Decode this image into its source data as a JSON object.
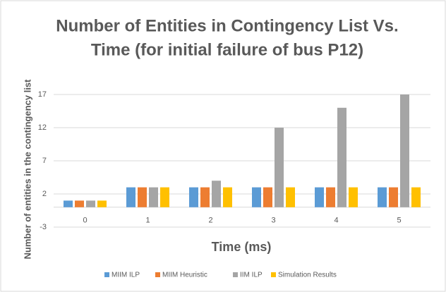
{
  "chart_data": {
    "type": "bar",
    "title": [
      "Number of Entities in Contingency List Vs.",
      "Time (for initial failure of bus P12)"
    ],
    "x_label": "Time (ms)",
    "y_label": "Number of entities in the contingency list",
    "categories": [
      "0",
      "1",
      "2",
      "3",
      "4",
      "5"
    ],
    "series": [
      {
        "name": "MIIM ILP",
        "color": "#5b9bd5",
        "values": [
          1,
          3,
          3,
          3,
          3,
          3
        ]
      },
      {
        "name": "MIIM Heuristic",
        "color": "#ed7d31",
        "values": [
          1,
          3,
          3,
          3,
          3,
          3
        ]
      },
      {
        "name": "IIM ILP",
        "color": "#a5a5a5",
        "values": [
          1,
          3,
          4,
          12,
          15,
          17
        ]
      },
      {
        "name": "Simulation Results",
        "color": "#ffc000",
        "values": [
          1,
          3,
          3,
          3,
          3,
          3
        ]
      }
    ],
    "ylim": [
      -3,
      17
    ],
    "yticks": [
      -3,
      2,
      7,
      12,
      17
    ],
    "grid": true,
    "legend": "bottom"
  }
}
